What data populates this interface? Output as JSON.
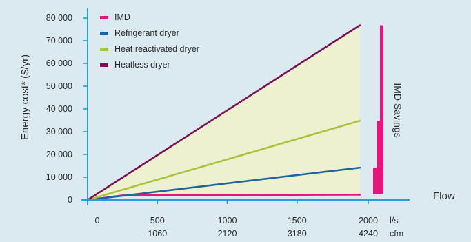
{
  "chart_data": {
    "type": "line",
    "ylabel": "Energy cost* ($/yr)",
    "xlabel": "Flow",
    "x_unit_primary": "l/s",
    "x_unit_secondary": "cfm",
    "x_ticks_primary": [
      "0",
      "500",
      "1000",
      "1500",
      "2000"
    ],
    "x_ticks_secondary": [
      "1060",
      "2120",
      "3180",
      "4240"
    ],
    "y_ticks": [
      "0",
      "10 000",
      "20 000",
      "30 000",
      "40 000",
      "50 000",
      "60 000",
      "70 000",
      "80 000"
    ],
    "xlim": [
      0,
      2000
    ],
    "ylim": [
      0,
      80000
    ],
    "series": [
      {
        "name": "IMD",
        "color": "#e5157a",
        "x": [
          0,
          250,
          1950
        ],
        "values": [
          0,
          2000,
          2300
        ]
      },
      {
        "name": "Refrigerant dryer",
        "color": "#1b64a0",
        "x": [
          0,
          1950
        ],
        "values": [
          0,
          14200
        ]
      },
      {
        "name": "Heat reactivated dryer",
        "color": "#a8c43c",
        "x": [
          0,
          1950
        ],
        "values": [
          0,
          34800
        ]
      },
      {
        "name": "Heatless dryer",
        "color": "#7a1157",
        "x": [
          0,
          1950
        ],
        "values": [
          0,
          76800
        ]
      }
    ],
    "savings_annotation": {
      "label": "IMD Savings",
      "color": "#e5157a",
      "bars": [
        {
          "x": 2035,
          "from": 2300,
          "to": 14200
        },
        {
          "x": 2055,
          "from": 2300,
          "to": 34800
        },
        {
          "x": 2075,
          "from": 2300,
          "to": 76800
        }
      ]
    },
    "fill_color": "#eef1cf",
    "axis_color": "#1ea2d8",
    "grid": false,
    "legend_position": "top-left"
  }
}
